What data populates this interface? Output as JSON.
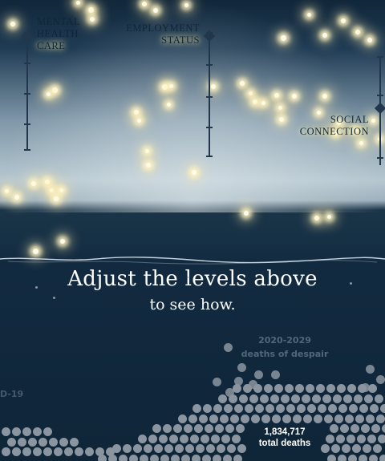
{
  "sliders": {
    "mental_health": {
      "label_lines": [
        "MENTAL",
        "HEALTH",
        "CARE"
      ],
      "level": 0.0
    },
    "employment": {
      "label_lines": [
        "EMPLOYMENT",
        "STATUS"
      ],
      "level": 0.0
    },
    "social": {
      "label_lines": [
        "SOCIAL",
        "CONNECTION"
      ],
      "level": 0.45
    }
  },
  "headline": "Adjust the levels above",
  "subheadline": "to see how.",
  "decade_label": [
    "2020-2029",
    "deaths of despair"
  ],
  "covid_label": "D-19",
  "total": {
    "value": "1,834,717",
    "label": "total deaths"
  },
  "colors": {
    "ink": "#22374c",
    "glow": "#fffbe8",
    "dot": "#8b95a0",
    "deep_water": "#0f2538"
  }
}
